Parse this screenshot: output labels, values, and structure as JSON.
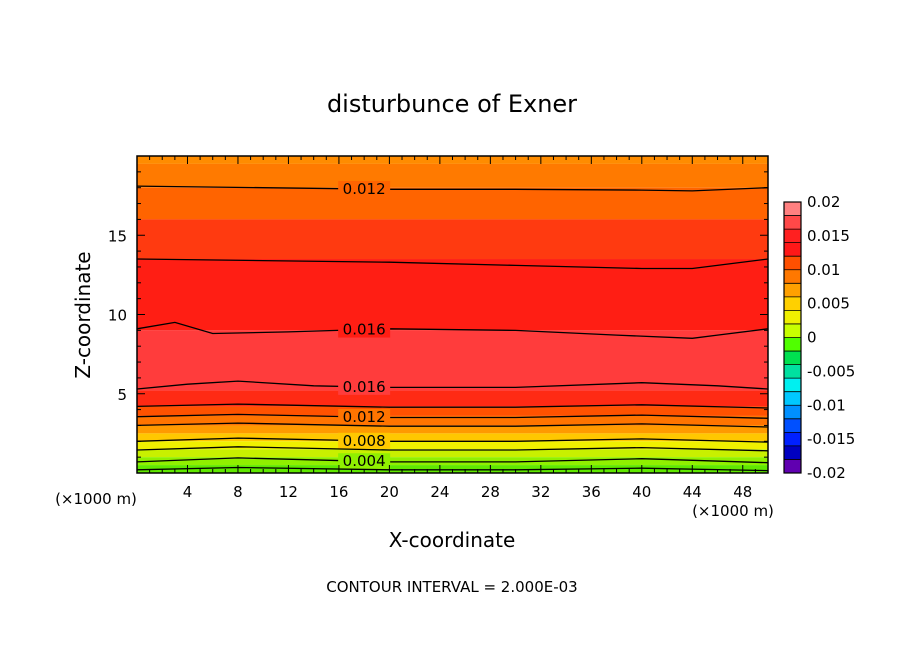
{
  "chart_data": {
    "type": "heatmap",
    "title": "disturbunce of Exner",
    "xlabel": "X-coordinate",
    "ylabel": "Z-coordinate",
    "x_unit": "(×1000 m)",
    "z_unit": "(×1000 m)",
    "footer": "CONTOUR INTERVAL = 2.000E-03",
    "xlim": [
      0,
      50
    ],
    "ylim": [
      0,
      20
    ],
    "x_ticks": [
      4,
      8,
      12,
      16,
      20,
      24,
      28,
      32,
      36,
      40,
      44,
      48
    ],
    "y_ticks": [
      5,
      10,
      15
    ],
    "contour_interval": 0.002,
    "colorbar": {
      "ticks": [
        "0.02",
        "0.015",
        "0.01",
        "0.005",
        "0",
        "-0.005",
        "-0.01",
        "-0.015",
        "-0.02"
      ],
      "levels": [
        0.02,
        0.018,
        0.016,
        0.014,
        0.012,
        0.01,
        0.008,
        0.006,
        0.004,
        0.002,
        0.0,
        -0.002,
        -0.004,
        -0.006,
        -0.008,
        -0.01,
        -0.012,
        -0.014,
        -0.016,
        -0.018,
        -0.02
      ],
      "colors": [
        "#ff8080",
        "#ff4848",
        "#ff2020",
        "#ff1818",
        "#ff5000",
        "#ff7800",
        "#ffa000",
        "#ffd000",
        "#f0f000",
        "#c8ff00",
        "#50ff00",
        "#00e050",
        "#00e0a0",
        "#00f0f0",
        "#00c8ff",
        "#0090ff",
        "#0050ff",
        "#0020ff",
        "#0000c0",
        "#6000b0"
      ]
    },
    "bands": [
      {
        "z_bottom": 19.5,
        "z_top": 20.0,
        "color": "#ff8c00"
      },
      {
        "z_bottom": 18.0,
        "z_top": 19.5,
        "color": "#ff7a00"
      },
      {
        "z_bottom": 16.0,
        "z_top": 18.0,
        "color": "#ff6400"
      },
      {
        "z_bottom": 13.5,
        "z_top": 16.0,
        "color": "#ff3a10"
      },
      {
        "z_bottom": 9.0,
        "z_top": 13.5,
        "color": "#ff1e14"
      },
      {
        "z_bottom": 5.2,
        "z_top": 9.0,
        "color": "#ff3c3c"
      },
      {
        "z_bottom": 4.2,
        "z_top": 5.2,
        "color": "#ff2a14"
      },
      {
        "z_bottom": 3.6,
        "z_top": 4.2,
        "color": "#ff5200"
      },
      {
        "z_bottom": 3.0,
        "z_top": 3.6,
        "color": "#ff7400"
      },
      {
        "z_bottom": 2.5,
        "z_top": 3.0,
        "color": "#ff9a00"
      },
      {
        "z_bottom": 2.0,
        "z_top": 2.5,
        "color": "#ffc800"
      },
      {
        "z_bottom": 1.5,
        "z_top": 2.0,
        "color": "#f0f000"
      },
      {
        "z_bottom": 1.0,
        "z_top": 1.5,
        "color": "#c8f000"
      },
      {
        "z_bottom": 0.5,
        "z_top": 1.0,
        "color": "#90f000"
      },
      {
        "z_bottom": 0.0,
        "z_top": 0.5,
        "color": "#60e800"
      }
    ],
    "contours": [
      {
        "value": 0.012,
        "label": "0.012",
        "points": [
          [
            0,
            18.1
          ],
          [
            10,
            18.0
          ],
          [
            20,
            17.9
          ],
          [
            30,
            17.9
          ],
          [
            40,
            17.85
          ],
          [
            44,
            17.8
          ],
          [
            50,
            18.0
          ]
        ]
      },
      {
        "value": 0.014,
        "label": "",
        "points": [
          [
            0,
            13.5
          ],
          [
            10,
            13.4
          ],
          [
            20,
            13.3
          ],
          [
            30,
            13.1
          ],
          [
            40,
            12.9
          ],
          [
            44,
            12.9
          ],
          [
            50,
            13.5
          ]
        ]
      },
      {
        "value": 0.016,
        "label": "0.016",
        "points": [
          [
            0,
            9.1
          ],
          [
            3,
            9.5
          ],
          [
            6,
            8.8
          ],
          [
            12,
            8.9
          ],
          [
            20,
            9.1
          ],
          [
            30,
            9.0
          ],
          [
            38,
            8.7
          ],
          [
            44,
            8.5
          ],
          [
            46,
            8.7
          ],
          [
            50,
            9.1
          ]
        ]
      },
      {
        "value": 0.016,
        "label": "0.016",
        "points": [
          [
            0,
            5.3
          ],
          [
            4,
            5.6
          ],
          [
            8,
            5.8
          ],
          [
            14,
            5.5
          ],
          [
            20,
            5.4
          ],
          [
            30,
            5.4
          ],
          [
            40,
            5.7
          ],
          [
            46,
            5.5
          ],
          [
            50,
            5.3
          ]
        ]
      },
      {
        "value": 0.014,
        "label": "",
        "points": [
          [
            0,
            4.2
          ],
          [
            8,
            4.35
          ],
          [
            20,
            4.15
          ],
          [
            30,
            4.15
          ],
          [
            40,
            4.3
          ],
          [
            50,
            4.1
          ]
        ]
      },
      {
        "value": 0.012,
        "label": "0.012",
        "points": [
          [
            0,
            3.55
          ],
          [
            8,
            3.7
          ],
          [
            20,
            3.5
          ],
          [
            30,
            3.5
          ],
          [
            40,
            3.65
          ],
          [
            50,
            3.45
          ]
        ]
      },
      {
        "value": 0.01,
        "label": "",
        "points": [
          [
            0,
            3.0
          ],
          [
            8,
            3.15
          ],
          [
            20,
            2.95
          ],
          [
            30,
            2.95
          ],
          [
            40,
            3.1
          ],
          [
            50,
            2.9
          ]
        ]
      },
      {
        "value": 0.008,
        "label": "0.008",
        "points": [
          [
            0,
            2.0
          ],
          [
            8,
            2.2
          ],
          [
            20,
            2.0
          ],
          [
            30,
            2.0
          ],
          [
            40,
            2.15
          ],
          [
            50,
            1.95
          ]
        ]
      },
      {
        "value": 0.006,
        "label": "",
        "points": [
          [
            0,
            1.45
          ],
          [
            8,
            1.65
          ],
          [
            20,
            1.45
          ],
          [
            30,
            1.45
          ],
          [
            40,
            1.6
          ],
          [
            50,
            1.4
          ]
        ]
      },
      {
        "value": 0.004,
        "label": "0.004",
        "points": [
          [
            0,
            0.7
          ],
          [
            8,
            0.95
          ],
          [
            20,
            0.7
          ],
          [
            30,
            0.7
          ],
          [
            40,
            0.9
          ],
          [
            50,
            0.65
          ]
        ]
      },
      {
        "value": 0.002,
        "label": "",
        "points": [
          [
            0,
            0.2
          ],
          [
            8,
            0.35
          ],
          [
            20,
            0.2
          ],
          [
            30,
            0.2
          ],
          [
            40,
            0.3
          ],
          [
            50,
            0.15
          ]
        ]
      }
    ]
  }
}
